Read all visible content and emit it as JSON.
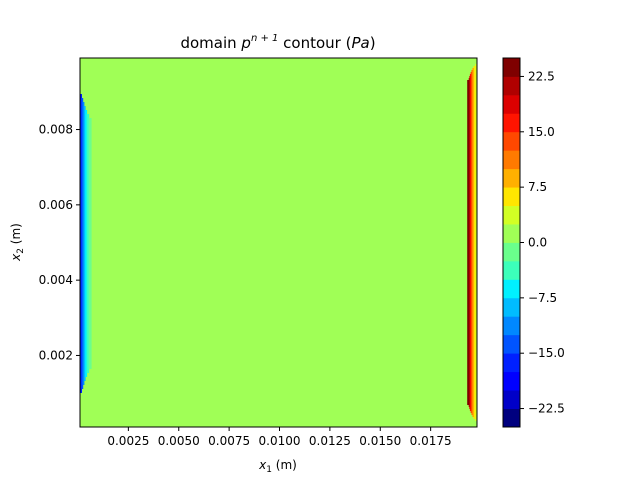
{
  "chart_data": {
    "type": "heatmap",
    "title": {
      "prefix": "domain ",
      "var": "p",
      "sup": "n + 1",
      "middle": " contour (",
      "unit": "Pa",
      "suffix": ")"
    },
    "xlabel": {
      "var": "x",
      "sub": "1",
      "rest": " (m)"
    },
    "ylabel": {
      "var": "x",
      "sub": "2",
      "rest": " (m)"
    },
    "xlim": [
      0.0001,
      0.0198
    ],
    "ylim": [
      0.0001,
      0.0099
    ],
    "x_ticks": [
      0.0025,
      0.005,
      0.0075,
      0.01,
      0.0125,
      0.015,
      0.0175
    ],
    "x_tick_labels": [
      "0.0025",
      "0.0050",
      "0.0075",
      "0.0100",
      "0.0125",
      "0.0150",
      "0.0175"
    ],
    "y_ticks": [
      0.002,
      0.004,
      0.006,
      0.008
    ],
    "y_tick_labels": [
      "0.002",
      "0.004",
      "0.006",
      "0.008"
    ],
    "colorbar": {
      "range": [
        -25,
        25
      ],
      "ticks": [
        -22.5,
        -15.0,
        -7.5,
        0.0,
        7.5,
        15.0,
        22.5
      ],
      "tick_labels": [
        "−22.5",
        "−15.0",
        "−7.5",
        "0.0",
        "7.5",
        "15.0",
        "22.5"
      ],
      "levels": [
        -25,
        -22.5,
        -20,
        -17.5,
        -15,
        -12.5,
        -10,
        -7.5,
        -5,
        -2.5,
        0,
        2.5,
        5,
        7.5,
        10,
        12.5,
        15,
        17.5,
        20,
        22.5,
        25
      ],
      "colors": [
        "#00007f",
        "#0000c8",
        "#0000ff",
        "#0020ff",
        "#0054ff",
        "#0088ff",
        "#00bcff",
        "#00f0ff",
        "#3cffba",
        "#6aff8c",
        "#a0ff56",
        "#d2ff24",
        "#ffe600",
        "#ffb000",
        "#ff7a00",
        "#ff4800",
        "#ff1400",
        "#dc0000",
        "#b00000",
        "#7f0000"
      ]
    },
    "field": {
      "interior_value": 0,
      "left_edge_min": -17.5,
      "right_edge_max": 25
    }
  }
}
